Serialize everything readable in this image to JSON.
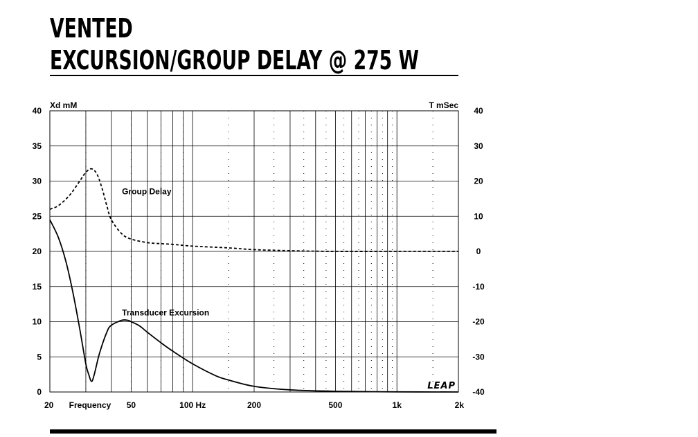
{
  "header": {
    "title_line1": "VENTED",
    "title_line2": "EXCURSION/GROUP DELAY @ 275 W"
  },
  "chart_data": {
    "type": "line",
    "x_scale": "log",
    "xlim": [
      20,
      2000
    ],
    "x_tick_labels": [
      {
        "value": 20,
        "label": "20"
      },
      {
        "value": 50,
        "label": "50"
      },
      {
        "value": 100,
        "label": "100 Hz"
      },
      {
        "value": 200,
        "label": "200"
      },
      {
        "value": 500,
        "label": "500"
      },
      {
        "value": 1000,
        "label": "1k"
      },
      {
        "value": 2000,
        "label": "2k"
      }
    ],
    "xlabel": "Frequency",
    "left_axis": {
      "label": "Xd mM",
      "ylim": [
        0,
        40
      ],
      "ticks": [
        0,
        5,
        10,
        15,
        20,
        25,
        30,
        35,
        40
      ]
    },
    "right_axis": {
      "label": "T mSec",
      "ylim": [
        -40,
        40
      ],
      "ticks": [
        -40,
        -30,
        -20,
        -10,
        0,
        10,
        20,
        30,
        40
      ]
    },
    "grid": true,
    "series": [
      {
        "name": "Group Delay",
        "axis": "right",
        "style": "dashed",
        "x": [
          20,
          22,
          25,
          28,
          30,
          32,
          34,
          36,
          38,
          40,
          45,
          50,
          60,
          70,
          80,
          100,
          150,
          200,
          300,
          500,
          1000,
          2000
        ],
        "y": [
          12,
          13,
          16,
          20,
          22.5,
          23.5,
          22,
          18,
          13,
          9,
          5,
          3.5,
          2.5,
          2.2,
          2,
          1.5,
          1,
          0.5,
          0.2,
          0,
          0,
          0
        ]
      },
      {
        "name": "Transducer Excursion",
        "axis": "left",
        "style": "solid",
        "x": [
          20,
          22,
          24,
          26,
          28,
          30,
          31,
          32,
          33,
          35,
          38,
          40,
          45,
          48,
          50,
          55,
          60,
          70,
          80,
          100,
          130,
          150,
          200,
          300,
          500,
          1000,
          2000
        ],
        "y": [
          24.5,
          22,
          18.5,
          14,
          9,
          4,
          2.5,
          1.5,
          2.5,
          5.5,
          8.5,
          9.5,
          10.2,
          10.2,
          10.0,
          9.4,
          8.5,
          7.0,
          5.8,
          4.0,
          2.3,
          1.7,
          0.8,
          0.3,
          0.1,
          0.02,
          0.0
        ]
      }
    ],
    "annotations": [
      {
        "text": "Group Delay",
        "x": 48,
        "y_left": 28.5
      },
      {
        "text": "Transducer Excursion",
        "x": 48,
        "y_left": 11.3
      }
    ],
    "logo": "LEAP"
  }
}
